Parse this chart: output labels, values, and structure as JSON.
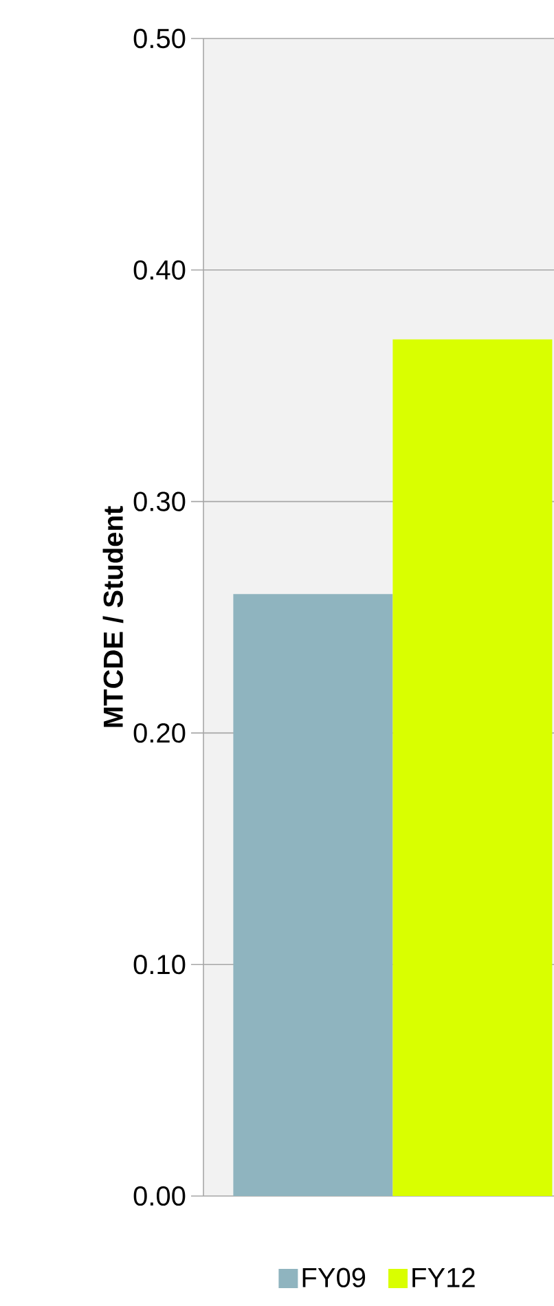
{
  "chart_data": {
    "type": "bar",
    "ylabel": "MTCDE / Student",
    "categories": [
      null
    ],
    "series": [
      {
        "name": "FY09",
        "color": "#8fb4bf",
        "values": [
          0.26
        ]
      },
      {
        "name": "FY12",
        "color": "#d9ff00",
        "values": [
          0.37
        ]
      }
    ],
    "ylim": [
      0,
      0.5
    ],
    "yticks": [
      {
        "value": 0,
        "label": "0.00"
      },
      {
        "value": 0.1,
        "label": "0.10"
      },
      {
        "value": 0.2,
        "label": "0.20"
      },
      {
        "value": 0.3,
        "label": "0.30"
      },
      {
        "value": 0.4,
        "label": "0.40"
      },
      {
        "value": 0.5,
        "label": "0.50"
      }
    ],
    "grid": "y",
    "legend": "bottom"
  }
}
